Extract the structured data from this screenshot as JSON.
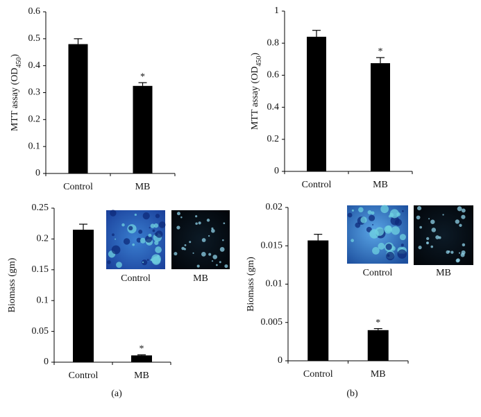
{
  "chart_data": [
    {
      "type": "bar",
      "ylabel": [
        "MTT assay (OD",
        "450",
        ")"
      ],
      "categories": [
        "Control",
        "MB"
      ],
      "values": [
        0.48,
        0.325
      ],
      "errors": [
        0.02,
        0.012
      ],
      "color": "#000000",
      "ylim": [
        0,
        0.6
      ],
      "yticks": [
        0,
        0.1,
        0.2,
        0.3,
        0.4,
        0.5,
        0.6
      ],
      "annotations": [
        {
          "category": "MB",
          "text": "*"
        }
      ]
    },
    {
      "type": "bar",
      "ylabel": [
        "MTT assay (OD",
        "450",
        ")"
      ],
      "categories": [
        "Control",
        "MB"
      ],
      "values": [
        0.84,
        0.675
      ],
      "errors": [
        0.04,
        0.035
      ],
      "color": "#000000",
      "ylim": [
        0,
        1
      ],
      "yticks": [
        0,
        0.2,
        0.4,
        0.6,
        0.8,
        1
      ],
      "annotations": [
        {
          "category": "MB",
          "text": "*"
        }
      ]
    },
    {
      "type": "bar",
      "ylabel": [
        "Biomass (gm)"
      ],
      "categories": [
        "Control",
        "MB"
      ],
      "values": [
        0.215,
        0.011
      ],
      "errors": [
        0.009,
        0.001
      ],
      "color": "#000000",
      "ylim": [
        0,
        0.25
      ],
      "yticks": [
        0,
        0.05,
        0.1,
        0.15,
        0.2,
        0.25
      ],
      "annotations": [
        {
          "category": "MB",
          "text": "*"
        }
      ],
      "images": [
        "Control",
        "MB"
      ],
      "panel": "(a)"
    },
    {
      "type": "bar",
      "ylabel": [
        "Biomass (gm)"
      ],
      "categories": [
        "Control",
        "MB"
      ],
      "values": [
        0.0157,
        0.004
      ],
      "errors": [
        0.0008,
        0.0002
      ],
      "color": "#000000",
      "ylim": [
        0,
        0.02
      ],
      "yticks": [
        0,
        0.005,
        0.01,
        0.015,
        0.02
      ],
      "annotations": [
        {
          "category": "MB",
          "text": "*"
        }
      ],
      "images": [
        "Control",
        "MB"
      ],
      "panel": "(b)"
    }
  ]
}
